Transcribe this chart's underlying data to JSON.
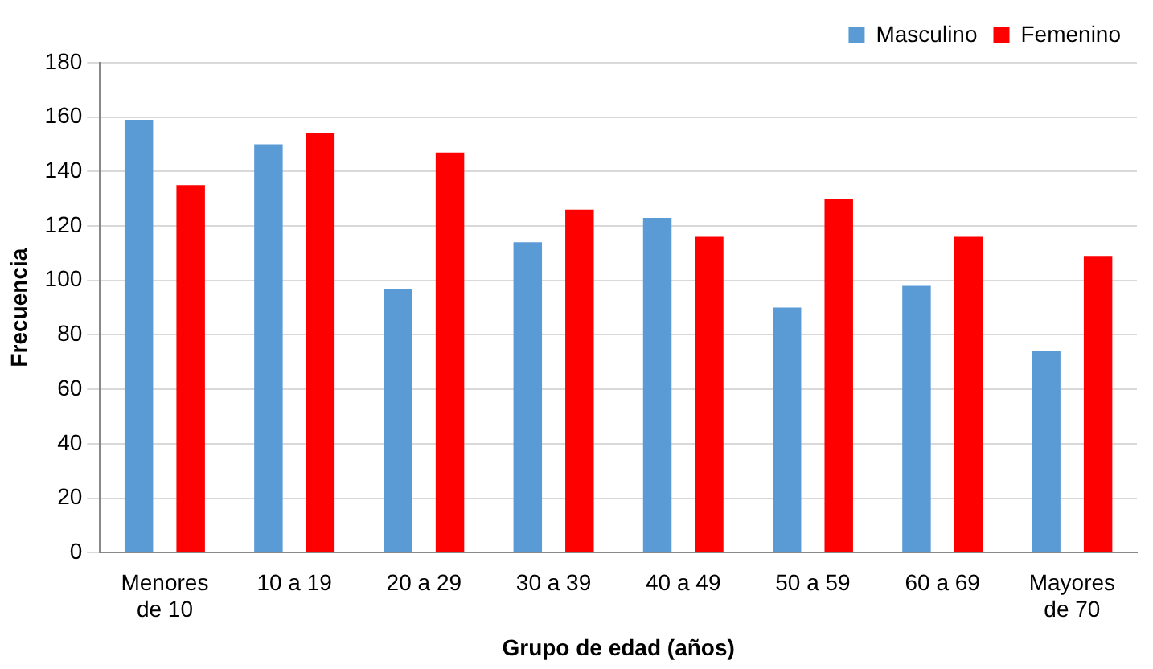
{
  "chart_data": {
    "type": "bar",
    "xlabel": "Grupo de edad (años)",
    "ylabel": "Frecuencia",
    "categories": [
      "Menores de 10",
      "10 a 19",
      "20 a 29",
      "30 a 39",
      "40 a 49",
      "50 a 59",
      "60 a 69",
      "Mayores de 70"
    ],
    "series": [
      {
        "name": "Masculino",
        "color": "#5b9bd5",
        "values": [
          159,
          150,
          97,
          114,
          123,
          90,
          98,
          74
        ]
      },
      {
        "name": "Femenino",
        "color": "#ff0000",
        "values": [
          135,
          154,
          147,
          126,
          116,
          130,
          116,
          109
        ]
      }
    ],
    "ylim": [
      0,
      180
    ],
    "yticks": [
      0,
      20,
      40,
      60,
      80,
      100,
      120,
      140,
      160,
      180
    ],
    "grid": "y",
    "legend": "top right"
  }
}
